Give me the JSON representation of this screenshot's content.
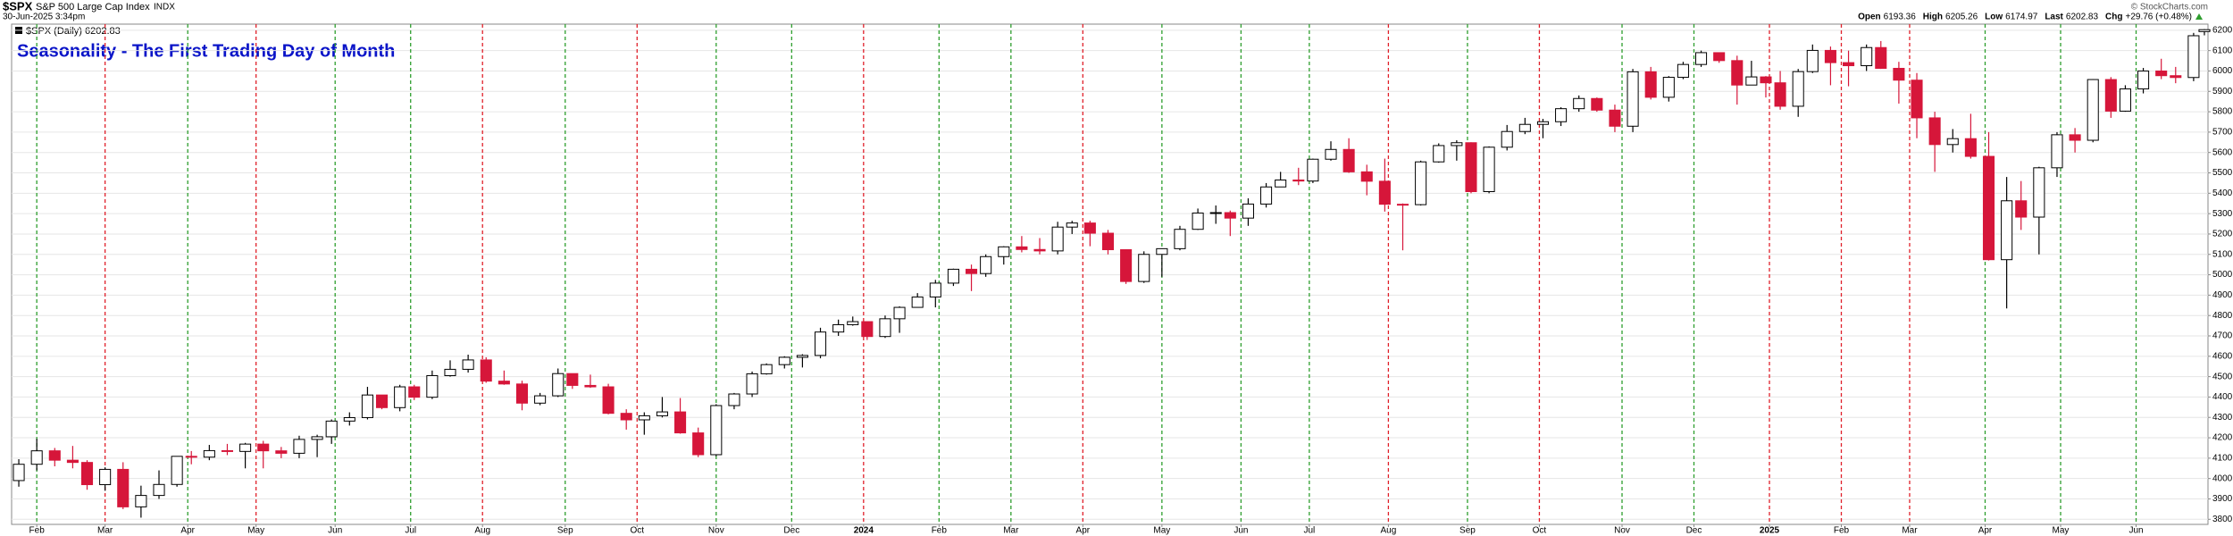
{
  "header": {
    "symbol": "$SPX",
    "name": "S&P 500 Large Cap Index",
    "exchange": "INDX",
    "timestamp": "30-Jun-2025 3:34pm",
    "copyright": "© StockCharts.com",
    "quote": [
      {
        "label": "Open",
        "value": "6193.36"
      },
      {
        "label": "High",
        "value": "6205.26"
      },
      {
        "label": "Low",
        "value": "6174.97"
      },
      {
        "label": "Last",
        "value": "6202.83"
      },
      {
        "label": "Chg",
        "value": "+29.76 (+0.48%)"
      }
    ]
  },
  "chart_data": {
    "type": "candlestick",
    "title": "Seasonality - The First Trading Day of Month",
    "legend_label": "$SPX (Daily) 6202.83",
    "up_color": "#000000",
    "down_color": "#d6163a",
    "grid": true,
    "x": [
      -5,
      0,
      5,
      10,
      14,
      19,
      24,
      29,
      34,
      39,
      43,
      48,
      53,
      58,
      63,
      68,
      73,
      78,
      82,
      87,
      92,
      96,
      101,
      105,
      110,
      115,
      120,
      125,
      130,
      135,
      140,
      145,
      149,
      154,
      159,
      164,
      169,
      174,
      179,
      184,
      189,
      194,
      199,
      203,
      208,
      213,
      218,
      223,
      227,
      231,
      236,
      240,
      245,
      250,
      255,
      260,
      264,
      269,
      274,
      279,
      284,
      288,
      293,
      298,
      303,
      308,
      313,
      318,
      323,
      328,
      332,
      337,
      342,
      346,
      351,
      355,
      360,
      365,
      370,
      375,
      380,
      385,
      390,
      395,
      399,
      404,
      409,
      414,
      419,
      424,
      429,
      434,
      439,
      444,
      449,
      454,
      458,
      463,
      468,
      473,
      477,
      481,
      485,
      490,
      494,
      499,
      504,
      509,
      513,
      518,
      523,
      528,
      533,
      538,
      543,
      548,
      552,
      557,
      562,
      567,
      572,
      577,
      581,
      586,
      591,
      595,
      600,
      603
    ],
    "open": [
      3990,
      4070,
      4136,
      4090,
      4079,
      3970,
      4045,
      3861,
      3917,
      3971,
      4109,
      4105,
      4137,
      4133,
      4169,
      4136,
      4124,
      4192,
      4205,
      4282,
      4299,
      4410,
      4348,
      4450,
      4399,
      4505,
      4536,
      4582,
      4478,
      4464,
      4370,
      4406,
      4515,
      4457,
      4450,
      4320,
      4288,
      4308,
      4327,
      4224,
      4117,
      4358,
      4415,
      4514,
      4559,
      4595,
      4604,
      4719,
      4755,
      4770,
      4697,
      4784,
      4840,
      4891,
      4959,
      5027,
      5006,
      5089,
      5137,
      5124,
      5117,
      5234,
      5254,
      5204,
      5123,
      4967,
      5100,
      5128,
      5223,
      5303,
      5305,
      5278,
      5347,
      5431,
      5465,
      5460,
      5567,
      5615,
      5505,
      5459,
      5346,
      5344,
      5554,
      5634,
      5648,
      5408,
      5626,
      5703,
      5738,
      5751,
      5815,
      5865,
      5808,
      5729,
      5996,
      5871,
      5969,
      6032,
      6090,
      6051,
      5931,
      5971,
      5942,
      5827,
      5997,
      6101,
      6041,
      6026,
      6115,
      6013,
      5955,
      5770,
      5639,
      5668,
      5581,
      5074,
      5363,
      5283,
      5525,
      5687,
      5660,
      5958,
      5803,
      5912,
      6000,
      5977,
      5968,
      6193.36
    ],
    "high": [
      4095,
      4195,
      4150,
      4160,
      4090,
      4055,
      4080,
      3965,
      4040,
      4110,
      4135,
      4165,
      4170,
      4175,
      4185,
      4155,
      4210,
      4215,
      4290,
      4325,
      4450,
      4410,
      4460,
      4460,
      4530,
      4580,
      4608,
      4595,
      4530,
      4480,
      4420,
      4540,
      4515,
      4510,
      4465,
      4340,
      4325,
      4400,
      4395,
      4250,
      4365,
      4420,
      4525,
      4565,
      4600,
      4610,
      4740,
      4780,
      4795,
      4770,
      4800,
      4845,
      4910,
      4975,
      5030,
      5050,
      5100,
      5140,
      5190,
      5180,
      5260,
      5265,
      5265,
      5220,
      5125,
      5115,
      5130,
      5240,
      5325,
      5340,
      5315,
      5375,
      5450,
      5505,
      5525,
      5570,
      5655,
      5670,
      5540,
      5570,
      5350,
      5560,
      5645,
      5660,
      5650,
      5630,
      5735,
      5770,
      5765,
      5822,
      5880,
      5870,
      5835,
      6010,
      6020,
      5975,
      6045,
      6100,
      6085,
      6075,
      6050,
      5975,
      6000,
      6010,
      6130,
      6120,
      6100,
      6130,
      6147,
      6045,
      5990,
      5800,
      5715,
      5790,
      5700,
      5480,
      5460,
      5530,
      5700,
      5720,
      5960,
      5970,
      5930,
      6015,
      6060,
      6020,
      6187,
      6205.26
    ],
    "low": [
      3960,
      4040,
      4060,
      4050,
      3945,
      3940,
      3850,
      3808,
      3900,
      3960,
      4070,
      4090,
      4115,
      4050,
      4050,
      4100,
      4100,
      4105,
      4170,
      4260,
      4290,
      4340,
      4330,
      4385,
      4390,
      4500,
      4520,
      4470,
      4460,
      4335,
      4360,
      4400,
      4440,
      4445,
      4315,
      4240,
      4215,
      4300,
      4220,
      4105,
      4110,
      4340,
      4400,
      4510,
      4540,
      4545,
      4590,
      4700,
      4750,
      4680,
      4690,
      4715,
      4840,
      4840,
      4945,
      4920,
      4990,
      5050,
      5110,
      5100,
      5100,
      5200,
      5140,
      5100,
      4955,
      4960,
      4990,
      5120,
      5220,
      5250,
      5190,
      5240,
      5330,
      5430,
      5440,
      5450,
      5560,
      5500,
      5390,
      5310,
      5120,
      5340,
      5550,
      5560,
      5400,
      5400,
      5610,
      5690,
      5670,
      5730,
      5800,
      5800,
      5700,
      5700,
      5860,
      5850,
      5960,
      6020,
      6040,
      5835,
      5930,
      5870,
      5810,
      5775,
      5990,
      5930,
      5925,
      6000,
      6010,
      5840,
      5670,
      5505,
      5600,
      5570,
      5070,
      4835,
      5220,
      5100,
      5480,
      5600,
      5650,
      5770,
      5800,
      5890,
      5960,
      5940,
      5950,
      6174.97
    ],
    "close": [
      4070,
      4136,
      4090,
      4079,
      3970,
      4045,
      3861,
      3917,
      3971,
      4109,
      4105,
      4137,
      4133,
      4169,
      4136,
      4124,
      4192,
      4205,
      4282,
      4299,
      4410,
      4348,
      4450,
      4399,
      4505,
      4536,
      4582,
      4478,
      4464,
      4370,
      4406,
      4515,
      4457,
      4450,
      4320,
      4288,
      4308,
      4327,
      4224,
      4117,
      4358,
      4415,
      4514,
      4559,
      4595,
      4604,
      4719,
      4755,
      4770,
      4697,
      4784,
      4840,
      4891,
      4959,
      5027,
      5006,
      5089,
      5137,
      5124,
      5117,
      5234,
      5254,
      5204,
      5123,
      4967,
      5100,
      5128,
      5223,
      5303,
      5305,
      5278,
      5347,
      5431,
      5465,
      5460,
      5567,
      5615,
      5505,
      5459,
      5346,
      5344,
      5554,
      5634,
      5648,
      5408,
      5626,
      5703,
      5738,
      5751,
      5815,
      5865,
      5808,
      5729,
      5996,
      5871,
      5969,
      6032,
      6090,
      6051,
      5931,
      5971,
      5942,
      5827,
      5997,
      6101,
      6041,
      6026,
      6115,
      6013,
      5955,
      5770,
      5639,
      5668,
      5581,
      5074,
      5363,
      5283,
      5525,
      5687,
      5660,
      5958,
      5803,
      5912,
      6000,
      5977,
      5968,
      6173.07,
      6202.83
    ],
    "xlim": [
      -7,
      604
    ],
    "ylim": [
      3775,
      6230
    ],
    "xticks": [
      {
        "value": 0,
        "label": "Feb"
      },
      {
        "value": 19,
        "label": "Mar"
      },
      {
        "value": 42,
        "label": "Apr"
      },
      {
        "value": 61,
        "label": "May"
      },
      {
        "value": 83,
        "label": "Jun"
      },
      {
        "value": 104,
        "label": "Jul"
      },
      {
        "value": 124,
        "label": "Aug"
      },
      {
        "value": 147,
        "label": "Sep"
      },
      {
        "value": 167,
        "label": "Oct"
      },
      {
        "value": 189,
        "label": "Nov"
      },
      {
        "value": 210,
        "label": "Dec"
      },
      {
        "value": 230,
        "label": "2024"
      },
      {
        "value": 251,
        "label": "Feb"
      },
      {
        "value": 271,
        "label": "Mar"
      },
      {
        "value": 291,
        "label": "Apr"
      },
      {
        "value": 313,
        "label": "May"
      },
      {
        "value": 335,
        "label": "Jun"
      },
      {
        "value": 354,
        "label": "Jul"
      },
      {
        "value": 376,
        "label": "Aug"
      },
      {
        "value": 398,
        "label": "Sep"
      },
      {
        "value": 418,
        "label": "Oct"
      },
      {
        "value": 441,
        "label": "Nov"
      },
      {
        "value": 461,
        "label": "Dec"
      },
      {
        "value": 482,
        "label": "2025"
      },
      {
        "value": 502,
        "label": "Feb"
      },
      {
        "value": 521,
        "label": "Mar"
      },
      {
        "value": 542,
        "label": "Apr"
      },
      {
        "value": 563,
        "label": "May"
      },
      {
        "value": 584,
        "label": "Jun"
      }
    ],
    "month_line_colors": [
      "#2e9e2e",
      "#e0202a",
      "#2e9e2e",
      "#e0202a",
      "#2e9e2e",
      "#2e9e2e",
      "#e0202a",
      "#2e9e2e",
      "#e0202a",
      "#2e9e2e",
      "#2e9e2e",
      "#e0202a",
      "#2e9e2e",
      "#2e9e2e",
      "#e0202a",
      "#2e9e2e",
      "#2e9e2e",
      "#2e9e2e",
      "#e0202a",
      "#2e9e2e",
      "#e0202a",
      "#2e9e2e",
      "#2e9e2e",
      "#e0202a",
      "#e0202a",
      "#e0202a",
      "#2e9e2e",
      "#2e9e2e",
      "#2e9e2e"
    ],
    "yticks": [
      3800,
      3900,
      4000,
      4100,
      4200,
      4300,
      4400,
      4500,
      4600,
      4700,
      4800,
      4900,
      5000,
      5100,
      5200,
      5300,
      5400,
      5500,
      5600,
      5700,
      5800,
      5900,
      6000,
      6100,
      6200
    ]
  }
}
